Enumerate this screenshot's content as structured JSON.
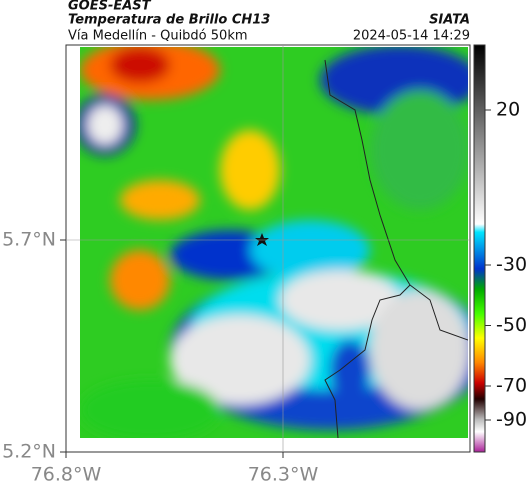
{
  "header": {
    "satellite": "GOES-EAST",
    "title": "Temperatura de Brillo CH13",
    "source": "SIATA",
    "subtitle": "Vía Medellín - Quibdó 50km",
    "datetime": "2024-05-14 14:29"
  },
  "map": {
    "xticks": [
      {
        "value": -76.8,
        "label": "76.8°W"
      },
      {
        "value": -76.3,
        "label": "76.3°W"
      }
    ],
    "yticks": [
      {
        "value": 5.2,
        "label": "5.2°N"
      },
      {
        "value": 5.7,
        "label": "5.7°N"
      }
    ]
  },
  "colorbar": {
    "ticks": [
      20,
      -30,
      -50,
      -70,
      -90
    ]
  }
}
